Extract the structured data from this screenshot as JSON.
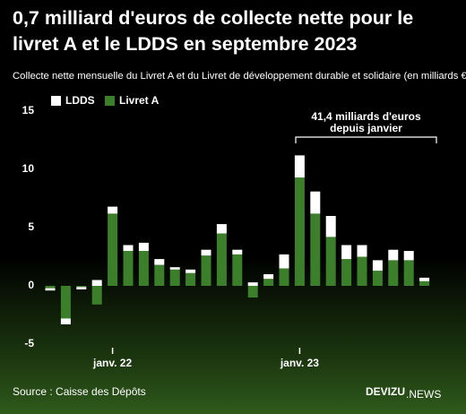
{
  "chart_data": {
    "type": "stacked_bar",
    "title": "0,7 milliard d'euros de collecte nette pour le livret A et le LDDS en septembre 2023",
    "subtitle": "Collecte nette mensuelle du Livret A et du Livret de développement durable et solidaire (en milliards €)",
    "categories": [
      null,
      null,
      null,
      null,
      "janv. 22",
      null,
      null,
      null,
      null,
      null,
      null,
      null,
      null,
      null,
      null,
      null,
      "janv. 23",
      null,
      null,
      null,
      null,
      null,
      null,
      null,
      null
    ],
    "series": [
      {
        "name": "LDDS",
        "color": "#ffffff",
        "values": [
          -0.2,
          -0.5,
          -0.2,
          0.5,
          0.6,
          0.5,
          0.7,
          0.5,
          0.2,
          0.3,
          0.5,
          0.8,
          0.4,
          0.3,
          0.4,
          1.2,
          1.9,
          1.9,
          1.8,
          1.2,
          1.0,
          0.9,
          0.9,
          0.8,
          0.3
        ]
      },
      {
        "name": "Livret A",
        "color": "#3c7f2b",
        "values": [
          -0.2,
          -2.8,
          -0.1,
          -1.6,
          6.2,
          3.0,
          3.0,
          1.8,
          1.4,
          1.1,
          2.6,
          4.5,
          2.7,
          -1.0,
          0.6,
          1.5,
          9.3,
          6.2,
          4.2,
          2.3,
          2.5,
          1.3,
          2.2,
          2.2,
          0.4
        ]
      }
    ],
    "ylim": [
      -5,
      15
    ],
    "yticks": [
      -5,
      0,
      5,
      10,
      15
    ],
    "annotation": [
      "41,4 milliards d'euros",
      "depuis janvier"
    ],
    "source": "Source : Caisse des Dépôts",
    "brand": "DEVIZU",
    "brand_suffix": ".NEWS"
  }
}
